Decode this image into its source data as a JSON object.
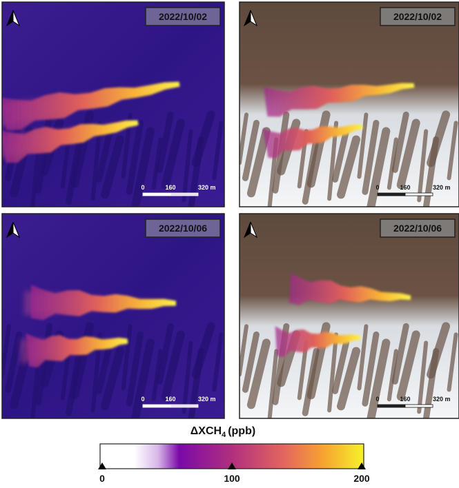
{
  "panels": [
    {
      "date": "2022/10/02",
      "scale": {
        "start": "0",
        "mid": "160",
        "end": "320 m"
      }
    },
    {
      "date": "2022/10/02",
      "scale": {
        "start": "0",
        "mid": "160",
        "end": "320 m"
      }
    },
    {
      "date": "2022/10/06",
      "scale": {
        "start": "0",
        "mid": "160",
        "end": "320 m"
      }
    },
    {
      "date": "2022/10/06",
      "scale": {
        "start": "0",
        "mid": "160",
        "end": "320 m"
      }
    }
  ],
  "colorbar": {
    "title": {
      "main": "ΔXCH",
      "subscript": "4",
      "unit": "(ppb)"
    },
    "range": [
      0,
      200
    ],
    "ticks": [
      0,
      100,
      200
    ]
  }
}
